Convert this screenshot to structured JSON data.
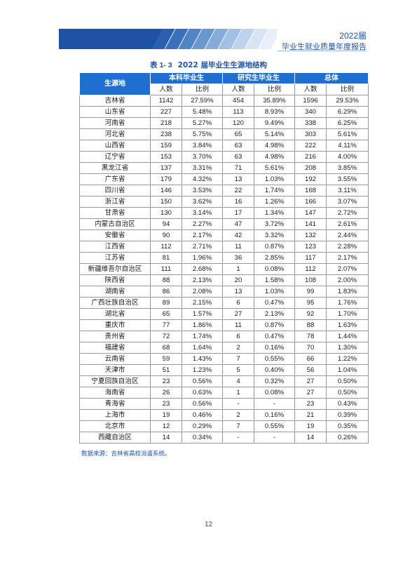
{
  "header": {
    "year": "2022届",
    "subtitle": "毕业生就业质量年度报告"
  },
  "caption": {
    "number": "表 1- 3",
    "title": "2022 届毕业生生源地结构"
  },
  "table": {
    "origin_header": "生源地",
    "groups": [
      "本科毕业生",
      "研究生毕业生",
      "总体"
    ],
    "count_label": "人数",
    "ratio_label": "比例",
    "rows": [
      [
        "吉林省",
        "1142",
        "27.59%",
        "454",
        "35.89%",
        "1596",
        "29.53%"
      ],
      [
        "山东省",
        "227",
        "5.48%",
        "113",
        "8.93%",
        "340",
        "6.29%"
      ],
      [
        "河南省",
        "218",
        "5.27%",
        "120",
        "9.49%",
        "338",
        "6.25%"
      ],
      [
        "河北省",
        "238",
        "5.75%",
        "65",
        "5.14%",
        "303",
        "5.61%"
      ],
      [
        "山西省",
        "159",
        "3.84%",
        "63",
        "4.98%",
        "222",
        "4.11%"
      ],
      [
        "辽宁省",
        "153",
        "3.70%",
        "63",
        "4.98%",
        "216",
        "4.00%"
      ],
      [
        "黑龙江省",
        "137",
        "3.31%",
        "71",
        "5.61%",
        "208",
        "3.85%"
      ],
      [
        "广东省",
        "179",
        "4.32%",
        "13",
        "1.03%",
        "192",
        "3.55%"
      ],
      [
        "四川省",
        "146",
        "3.53%",
        "22",
        "1.74%",
        "168",
        "3.11%"
      ],
      [
        "浙江省",
        "150",
        "3.62%",
        "16",
        "1.26%",
        "166",
        "3.07%"
      ],
      [
        "甘肃省",
        "130",
        "3.14%",
        "17",
        "1.34%",
        "147",
        "2.72%"
      ],
      [
        "内蒙古自治区",
        "94",
        "2.27%",
        "47",
        "3.72%",
        "141",
        "2.61%"
      ],
      [
        "安徽省",
        "90",
        "2.17%",
        "42",
        "3.32%",
        "132",
        "2.44%"
      ],
      [
        "江西省",
        "112",
        "2.71%",
        "11",
        "0.87%",
        "123",
        "2.28%"
      ],
      [
        "江苏省",
        "81",
        "1.96%",
        "36",
        "2.85%",
        "117",
        "2.17%"
      ],
      [
        "新疆维吾尔自治区",
        "111",
        "2.68%",
        "1",
        "0.08%",
        "112",
        "2.07%"
      ],
      [
        "陕西省",
        "88",
        "2.13%",
        "20",
        "1.58%",
        "108",
        "2.00%"
      ],
      [
        "湖南省",
        "86",
        "2.08%",
        "13",
        "1.03%",
        "99",
        "1.83%"
      ],
      [
        "广西壮族自治区",
        "89",
        "2.15%",
        "6",
        "0.47%",
        "95",
        "1.76%"
      ],
      [
        "湖北省",
        "65",
        "1.57%",
        "27",
        "2.13%",
        "92",
        "1.70%"
      ],
      [
        "重庆市",
        "77",
        "1.86%",
        "11",
        "0.87%",
        "88",
        "1.63%"
      ],
      [
        "贵州省",
        "72",
        "1.74%",
        "6",
        "0.47%",
        "78",
        "1.44%"
      ],
      [
        "福建省",
        "68",
        "1.64%",
        "2",
        "0.16%",
        "70",
        "1.30%"
      ],
      [
        "云南省",
        "59",
        "1.43%",
        "7",
        "0.55%",
        "66",
        "1.22%"
      ],
      [
        "天津市",
        "51",
        "1.23%",
        "5",
        "0.40%",
        "56",
        "1.04%"
      ],
      [
        "宁夏回族自治区",
        "23",
        "0.56%",
        "4",
        "0.32%",
        "27",
        "0.50%"
      ],
      [
        "海南省",
        "26",
        "0.63%",
        "1",
        "0.08%",
        "27",
        "0.50%"
      ],
      [
        "青海省",
        "23",
        "0.56%",
        "-",
        "-",
        "23",
        "0.43%"
      ],
      [
        "上海市",
        "19",
        "0.46%",
        "2",
        "0.16%",
        "21",
        "0.39%"
      ],
      [
        "北京市",
        "12",
        "0.29%",
        "7",
        "0.55%",
        "19",
        "0.35%"
      ],
      [
        "西藏自治区",
        "14",
        "0.34%",
        "-",
        "-",
        "14",
        "0.26%"
      ]
    ]
  },
  "source": "数据来源：吉林省高校派遣系统。",
  "page_number": "12",
  "colors": {
    "brand": "#1f52a6",
    "header_fill": "#1f6fd1",
    "border": "#8a9ab8"
  }
}
